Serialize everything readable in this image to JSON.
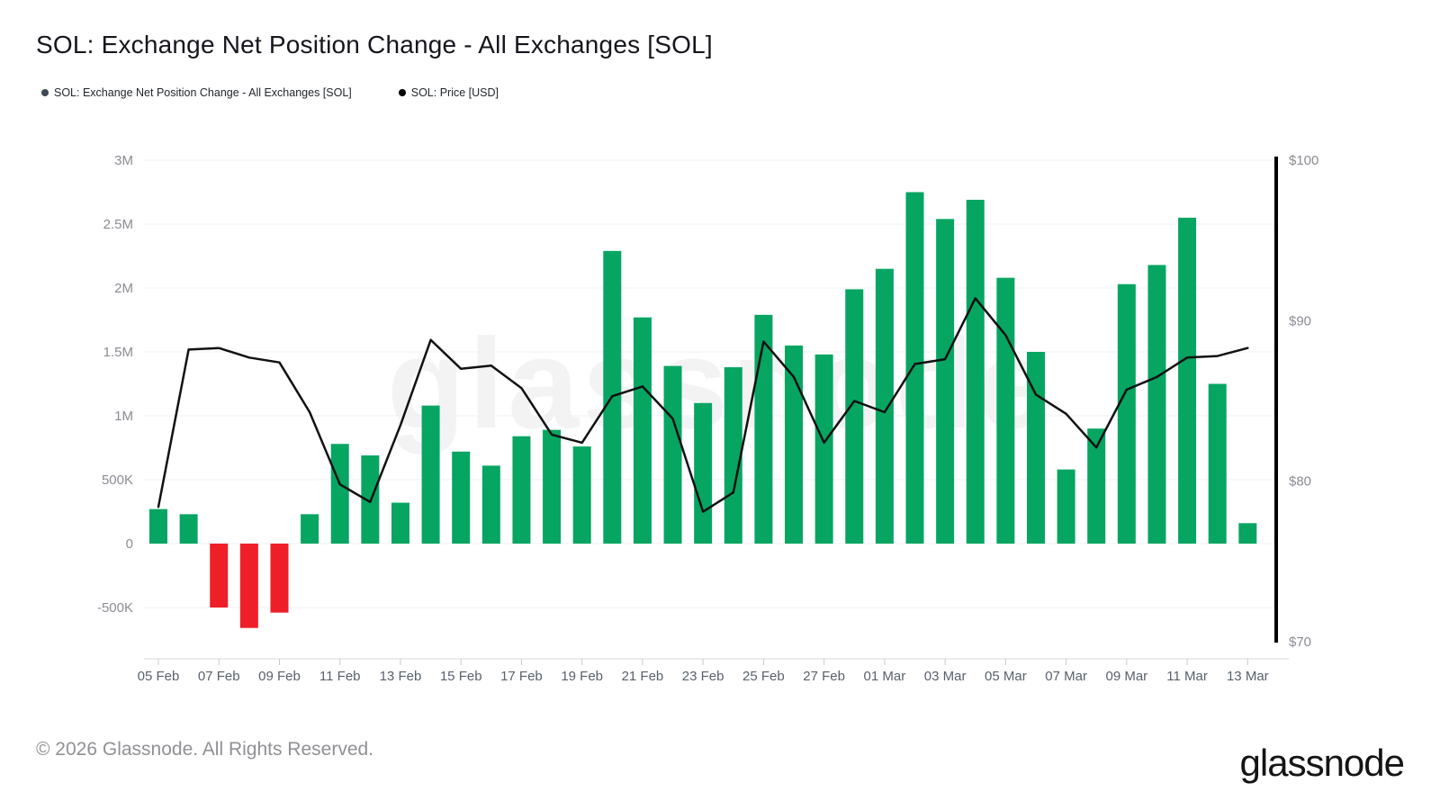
{
  "header": {
    "title": "SOL: Exchange Net Position Change - All Exchanges [SOL]"
  },
  "legend": {
    "items": [
      {
        "label": "SOL: Exchange Net Position Change - All Exchanges [SOL]",
        "color": "#3c4853"
      },
      {
        "label": "SOL: Price [USD]",
        "color": "#000000"
      }
    ]
  },
  "footer": {
    "copyright": "© 2026 Glassnode. All Rights Reserved.",
    "brand": "glassnode",
    "watermark": "glassnode"
  },
  "chart_data": {
    "type": "bar",
    "title": "SOL: Exchange Net Position Change - All Exchanges [SOL]",
    "categories": [
      "05 Feb",
      "06 Feb",
      "07 Feb",
      "08 Feb",
      "09 Feb",
      "10 Feb",
      "11 Feb",
      "12 Feb",
      "13 Feb",
      "14 Feb",
      "15 Feb",
      "16 Feb",
      "17 Feb",
      "18 Feb",
      "19 Feb",
      "20 Feb",
      "21 Feb",
      "22 Feb",
      "23 Feb",
      "24 Feb",
      "25 Feb",
      "26 Feb",
      "27 Feb",
      "28 Feb",
      "01 Mar",
      "02 Mar",
      "03 Mar",
      "04 Mar",
      "05 Mar",
      "06 Mar",
      "07 Mar",
      "08 Mar",
      "09 Mar",
      "10 Mar",
      "11 Mar",
      "12 Mar",
      "13 Mar"
    ],
    "x_tick_labels_shown": [
      "05 Feb",
      "07 Feb",
      "09 Feb",
      "11 Feb",
      "13 Feb",
      "15 Feb",
      "17 Feb",
      "19 Feb",
      "21 Feb",
      "23 Feb",
      "25 Feb",
      "27 Feb",
      "01 Mar",
      "03 Mar",
      "05 Mar",
      "07 Mar",
      "09 Mar",
      "11 Mar",
      "13 Mar"
    ],
    "series": [
      {
        "name": "SOL: Exchange Net Position Change - All Exchanges [SOL]",
        "type": "bar",
        "axis": "left",
        "unit": "SOL (millions)",
        "values": [
          0.27,
          0.23,
          -0.5,
          -0.66,
          -0.54,
          0.23,
          0.78,
          0.69,
          0.32,
          1.08,
          0.72,
          0.61,
          0.84,
          0.89,
          0.76,
          2.29,
          1.77,
          1.39,
          1.1,
          1.38,
          1.79,
          1.55,
          1.48,
          1.99,
          2.15,
          2.75,
          2.54,
          2.69,
          2.08,
          1.5,
          0.58,
          0.9,
          2.03,
          2.18,
          2.55,
          1.25,
          0.16
        ],
        "positive_color": "#07a562",
        "negative_color": "#ee1f28"
      },
      {
        "name": "SOL: Price [USD]",
        "type": "line",
        "axis": "right",
        "unit": "USD",
        "values": [
          78.4,
          88.2,
          88.3,
          87.7,
          87.4,
          84.3,
          79.8,
          78.7,
          83.5,
          88.8,
          87.0,
          87.2,
          85.8,
          82.9,
          82.4,
          85.3,
          85.9,
          83.9,
          78.1,
          79.3,
          88.7,
          86.5,
          82.4,
          85.0,
          84.3,
          87.3,
          87.6,
          91.4,
          89.1,
          85.4,
          84.2,
          82.1,
          85.7,
          86.5,
          87.7,
          87.8,
          88.3
        ],
        "color": "#111111"
      }
    ],
    "y_axis_left": {
      "tick_labels": [
        "3M",
        "2.5M",
        "2M",
        "1.5M",
        "1M",
        "500K",
        "0",
        "-500K"
      ],
      "tick_values": [
        3,
        2.5,
        2,
        1.5,
        1,
        0.5,
        0,
        -0.5
      ],
      "range": [
        -0.9,
        3.0
      ]
    },
    "y_axis_right": {
      "tick_labels": [
        "$100",
        "$90",
        "$80",
        "$70"
      ],
      "tick_values": [
        100,
        90,
        80,
        70
      ],
      "range": [
        70,
        100
      ]
    },
    "grid": "horizontal",
    "legend_position": "top-left"
  },
  "style": {
    "gridline_color": "#eef0f4",
    "left_label_color": "#8b8b94",
    "right_label_color": "#8b8b94",
    "x_label_color": "#5a616b",
    "right_axis_line_color": "#000000",
    "bottom_axis_line_color": "#d8dade",
    "tick_mark_color": "#c6c9cf"
  }
}
